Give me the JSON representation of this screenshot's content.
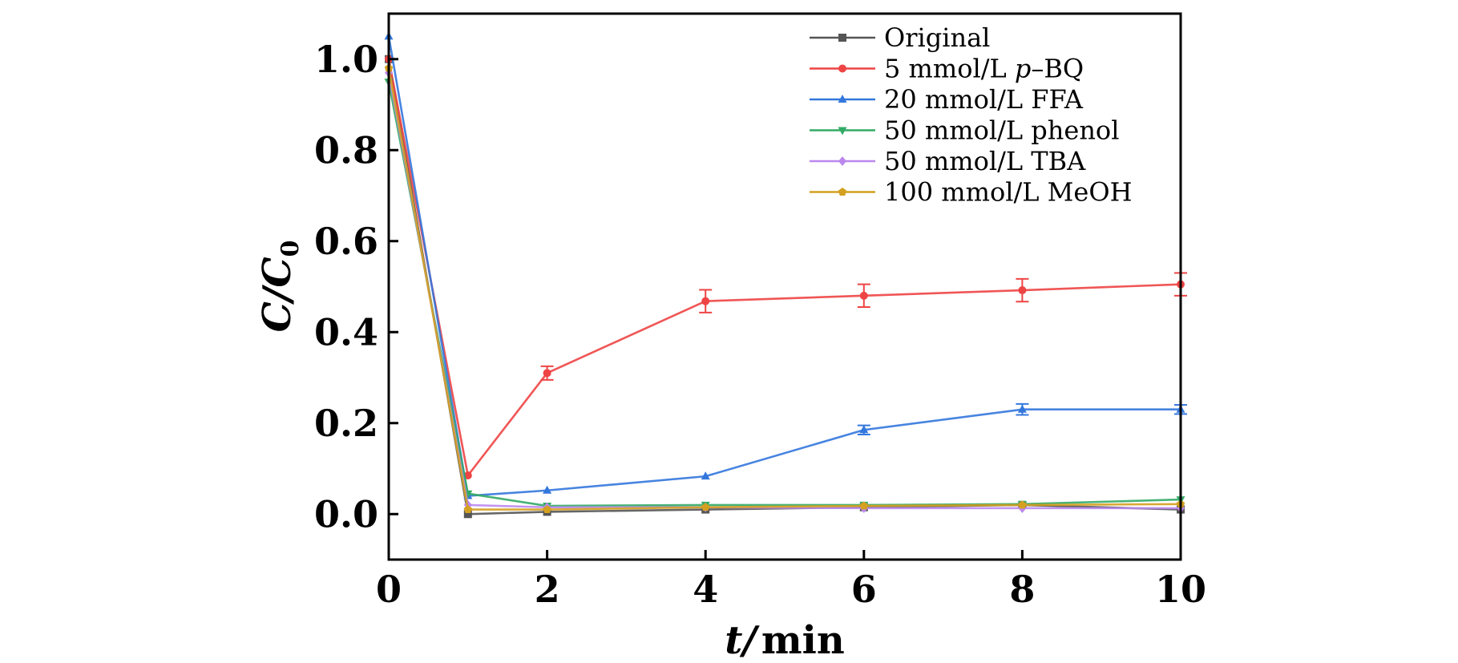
{
  "chart_data": {
    "type": "line",
    "xlabel": {
      "var": "t",
      "unit": "min"
    },
    "ylabel": {
      "base": "C",
      "sub": "0"
    },
    "xlim": [
      0,
      10
    ],
    "ylim": [
      -0.1,
      1.1
    ],
    "x_ticks": [
      "0",
      "2",
      "4",
      "6",
      "8",
      "10"
    ],
    "y_ticks": [
      "0.0",
      "0.2",
      "0.4",
      "0.6",
      "0.8",
      "1.0"
    ],
    "grid": false,
    "legend_position": "top-right",
    "x": [
      0,
      1,
      2,
      4,
      6,
      8,
      10
    ],
    "series": [
      {
        "name": "Original",
        "color": "#555555",
        "marker": "square",
        "values": [
          1.0,
          0.0,
          0.005,
          0.01,
          0.015,
          0.02,
          0.01
        ],
        "errors": [
          0,
          0,
          0,
          0,
          0,
          0,
          0
        ]
      },
      {
        "name_parts": [
          "5 mmol/L ",
          "p",
          "–BQ"
        ],
        "color": "#ee4444",
        "marker": "circle",
        "values": [
          1.0,
          0.085,
          0.31,
          0.468,
          0.48,
          0.492,
          0.505
        ],
        "errors": [
          0,
          0,
          0.015,
          0.025,
          0.025,
          0.025,
          0.025
        ]
      },
      {
        "name": "20 mmol/L FFA",
        "color": "#3377dd",
        "marker": "triangle",
        "values": [
          1.05,
          0.04,
          0.052,
          0.083,
          0.185,
          0.23,
          0.23
        ],
        "errors": [
          0,
          0,
          0,
          0,
          0.01,
          0.012,
          0.01
        ]
      },
      {
        "name": "50 mmol/L phenol",
        "color": "#33aa66",
        "marker": "triangle-down",
        "values": [
          0.95,
          0.045,
          0.018,
          0.02,
          0.02,
          0.022,
          0.032
        ],
        "errors": [
          0,
          0,
          0,
          0,
          0,
          0,
          0
        ]
      },
      {
        "name": "50 mmol/L TBA",
        "color": "#bb88ee",
        "marker": "diamond",
        "values": [
          0.97,
          0.02,
          0.015,
          0.015,
          0.013,
          0.013,
          0.013
        ],
        "errors": [
          0,
          0,
          0,
          0,
          0,
          0,
          0
        ]
      },
      {
        "name": "100 mmol/L MeOH",
        "color": "#d4a020",
        "marker": "pentagon",
        "values": [
          0.98,
          0.01,
          0.01,
          0.015,
          0.018,
          0.02,
          0.022
        ],
        "errors": [
          0,
          0,
          0,
          0,
          0,
          0,
          0
        ]
      }
    ]
  }
}
